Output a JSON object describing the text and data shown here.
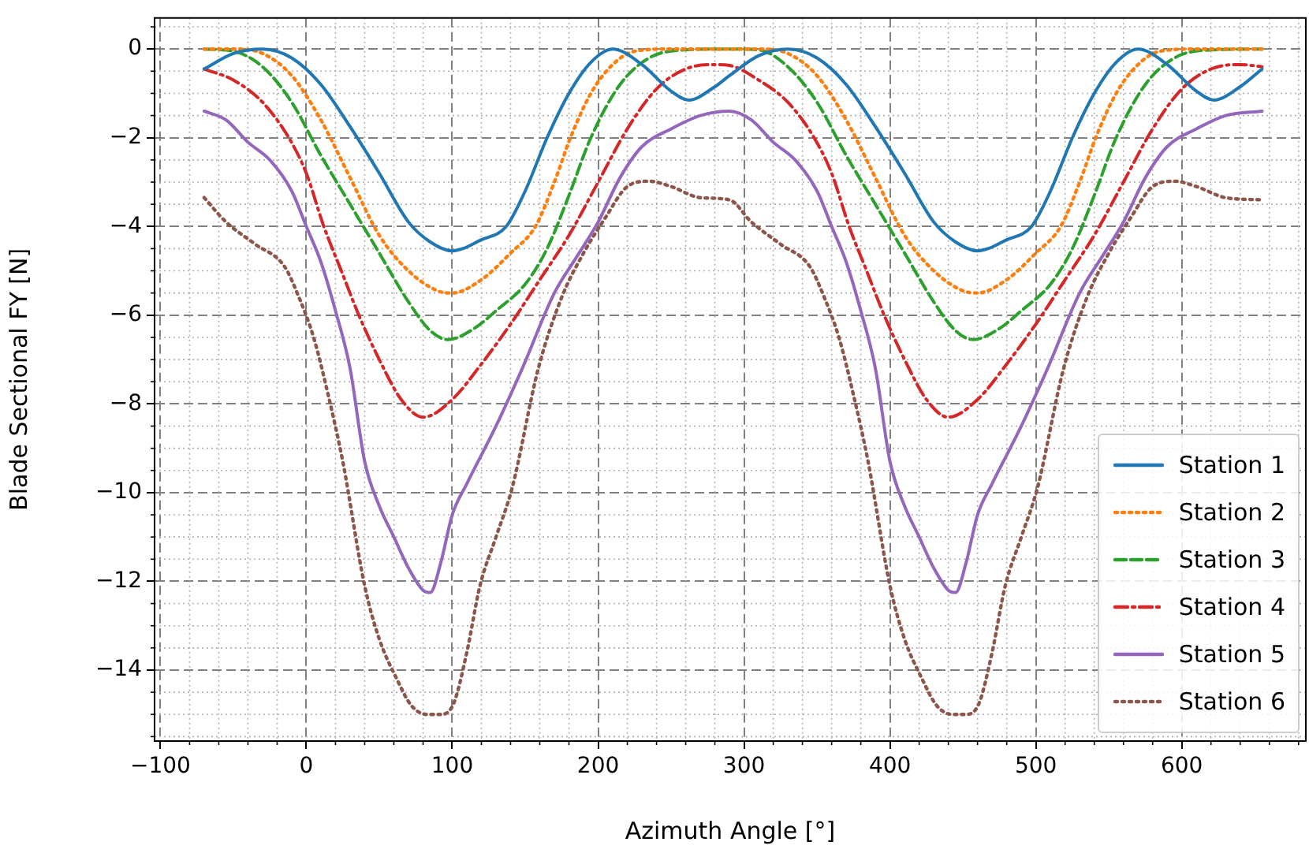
{
  "chart_data": {
    "type": "line",
    "xlabel": "Azimuth Angle [°]",
    "ylabel": "Blade Sectional FY [N]",
    "xlim": [
      -104,
      685
    ],
    "ylim": [
      -15.6,
      0.7
    ],
    "xticks": [
      -100,
      0,
      100,
      200,
      300,
      400,
      500,
      600
    ],
    "yticks": [
      0,
      -2,
      -4,
      -6,
      -8,
      -10,
      -12,
      -14
    ],
    "grid": true,
    "legend": "bottom right",
    "marker": "none",
    "series": [
      {
        "name": "Station 1",
        "color": "#1f77b4",
        "line_style": "solid",
        "x": [
          -70,
          -50,
          -30,
          -10,
          10,
          30,
          50,
          70,
          85,
          100,
          120,
          137,
          150,
          165,
          180,
          195,
          210,
          230,
          250,
          262,
          280,
          290,
          310,
          330,
          350,
          370,
          390,
          410,
          430,
          445,
          460,
          480,
          497,
          510,
          525,
          540,
          555,
          570,
          590,
          610,
          622,
          640,
          655
        ],
        "values": [
          -0.45,
          -0.1,
          0,
          -0.2,
          -0.8,
          -1.75,
          -2.8,
          -3.9,
          -4.35,
          -4.55,
          -4.3,
          -4.0,
          -3.2,
          -2.0,
          -1.0,
          -0.3,
          0,
          -0.35,
          -0.95,
          -1.15,
          -0.85,
          -0.6,
          -0.15,
          0,
          -0.2,
          -0.8,
          -1.75,
          -2.8,
          -3.9,
          -4.35,
          -4.55,
          -4.3,
          -4.0,
          -3.2,
          -2.0,
          -1.0,
          -0.3,
          0,
          -0.35,
          -0.95,
          -1.15,
          -0.85,
          -0.45
        ]
      },
      {
        "name": "Station 2",
        "color": "#ff7f0e",
        "line_style": "dotted",
        "x": [
          -70,
          -50,
          -30,
          -10,
          10,
          30,
          50,
          70,
          90,
          100,
          120,
          140,
          157,
          170,
          181,
          195,
          210,
          225,
          250,
          290,
          310,
          330,
          350,
          370,
          390,
          410,
          430,
          450,
          460,
          480,
          500,
          517,
          530,
          541,
          555,
          570,
          585,
          610,
          655
        ],
        "values": [
          0,
          0,
          -0.1,
          -0.6,
          -1.6,
          -2.9,
          -4.2,
          -5.0,
          -5.45,
          -5.5,
          -5.2,
          -4.6,
          -4.0,
          -3.0,
          -2.0,
          -1.0,
          -0.35,
          -0.05,
          0,
          0,
          0,
          -0.1,
          -0.6,
          -1.6,
          -2.9,
          -4.2,
          -5.0,
          -5.45,
          -5.5,
          -5.2,
          -4.6,
          -4.0,
          -3.0,
          -2.0,
          -1.0,
          -0.35,
          -0.05,
          0,
          0
        ]
      },
      {
        "name": "Station 3",
        "color": "#2ca02c",
        "line_style": "dashed",
        "x": [
          -70,
          -50,
          -30,
          -10,
          10,
          30,
          50,
          70,
          85,
          97,
          115,
          130,
          150,
          165,
          180,
          195,
          215,
          235,
          255,
          290,
          310,
          330,
          350,
          370,
          390,
          410,
          430,
          445,
          457,
          475,
          490,
          510,
          525,
          540,
          555,
          575,
          595,
          615,
          655
        ],
        "values": [
          0,
          -0.05,
          -0.4,
          -1.2,
          -2.4,
          -3.5,
          -4.6,
          -5.7,
          -6.35,
          -6.55,
          -6.3,
          -5.9,
          -5.3,
          -4.5,
          -3.3,
          -2.0,
          -0.8,
          -0.2,
          -0.03,
          0,
          -0.02,
          -0.4,
          -1.2,
          -2.4,
          -3.5,
          -4.6,
          -5.7,
          -6.35,
          -6.55,
          -6.3,
          -5.9,
          -5.3,
          -4.5,
          -3.3,
          -2.0,
          -0.8,
          -0.2,
          -0.03,
          0
        ]
      },
      {
        "name": "Station 4",
        "color": "#d62728",
        "line_style": "dashdot",
        "x": [
          -70,
          -50,
          -30,
          -12,
          0,
          12,
          24,
          36,
          50,
          65,
          80,
          100,
          120,
          140,
          160,
          180,
          200,
          220,
          240,
          260,
          280,
          290,
          310,
          330,
          348,
          360,
          372,
          384,
          396,
          410,
          425,
          440,
          460,
          480,
          500,
          520,
          540,
          560,
          580,
          600,
          620,
          640,
          655
        ],
        "values": [
          -0.45,
          -0.7,
          -1.2,
          -2.0,
          -2.8,
          -4.0,
          -5.0,
          -6.0,
          -7.0,
          -7.9,
          -8.3,
          -7.9,
          -7.1,
          -6.2,
          -5.2,
          -4.2,
          -3.0,
          -1.8,
          -0.9,
          -0.45,
          -0.35,
          -0.37,
          -0.7,
          -1.2,
          -2.0,
          -2.8,
          -4.0,
          -5.0,
          -6.0,
          -7.0,
          -7.9,
          -8.3,
          -7.9,
          -7.1,
          -6.2,
          -5.2,
          -4.2,
          -3.0,
          -1.8,
          -0.9,
          -0.45,
          -0.35,
          -0.4
        ]
      },
      {
        "name": "Station 5",
        "color": "#9467bd",
        "line_style": "solid",
        "x": [
          -70,
          -55,
          -40,
          -25,
          -10,
          0,
          10,
          20,
          30,
          40,
          50,
          60,
          70,
          80,
          85,
          92,
          100,
          110,
          130,
          148,
          170,
          185,
          200,
          215,
          230,
          250,
          270,
          290,
          305,
          320,
          335,
          350,
          360,
          370,
          380,
          390,
          400,
          410,
          420,
          430,
          440,
          445,
          452,
          460,
          470,
          490,
          508,
          530,
          545,
          560,
          575,
          590,
          610,
          630,
          655
        ],
        "values": [
          -1.4,
          -1.6,
          -2.1,
          -2.5,
          -3.2,
          -4.0,
          -4.8,
          -5.9,
          -7.2,
          -9.3,
          -10.3,
          -11.0,
          -11.7,
          -12.2,
          -12.25,
          -11.6,
          -10.5,
          -9.8,
          -8.5,
          -7.2,
          -5.5,
          -4.7,
          -3.9,
          -2.9,
          -2.2,
          -1.8,
          -1.5,
          -1.4,
          -1.6,
          -2.1,
          -2.5,
          -3.2,
          -4.0,
          -4.8,
          -5.9,
          -7.2,
          -9.3,
          -10.3,
          -11.0,
          -11.7,
          -12.2,
          -12.25,
          -11.6,
          -10.5,
          -9.8,
          -8.5,
          -7.2,
          -5.5,
          -4.7,
          -3.9,
          -2.9,
          -2.2,
          -1.8,
          -1.5,
          -1.4
        ]
      },
      {
        "name": "Station 6",
        "color": "#8c564b",
        "line_style": "dotted",
        "x": [
          -70,
          -55,
          -35,
          -15,
          -5,
          5,
          15,
          25,
          40,
          50,
          62,
          72,
          83,
          92,
          101,
          110,
          119,
          130,
          141,
          159,
          175,
          190,
          205,
          220,
          235,
          250,
          270,
          290,
          305,
          325,
          345,
          355,
          365,
          375,
          385,
          400,
          410,
          422,
          432,
          443,
          452,
          461,
          470,
          479,
          490,
          501,
          519,
          535,
          550,
          565,
          580,
          595,
          610,
          630,
          655
        ],
        "values": [
          -3.35,
          -3.9,
          -4.4,
          -4.9,
          -5.6,
          -6.5,
          -7.8,
          -9.3,
          -12.1,
          -13.3,
          -14.2,
          -14.8,
          -15.0,
          -15.0,
          -14.75,
          -13.6,
          -12.1,
          -11.0,
          -9.9,
          -7.2,
          -5.6,
          -4.6,
          -3.8,
          -3.1,
          -2.98,
          -3.1,
          -3.35,
          -3.4,
          -3.9,
          -4.4,
          -4.9,
          -5.6,
          -6.5,
          -7.8,
          -9.3,
          -12.1,
          -13.3,
          -14.2,
          -14.8,
          -15.0,
          -15.0,
          -14.75,
          -13.6,
          -12.1,
          -11.0,
          -9.9,
          -7.2,
          -5.6,
          -4.6,
          -3.8,
          -3.1,
          -2.98,
          -3.1,
          -3.35,
          -3.4
        ]
      }
    ]
  }
}
